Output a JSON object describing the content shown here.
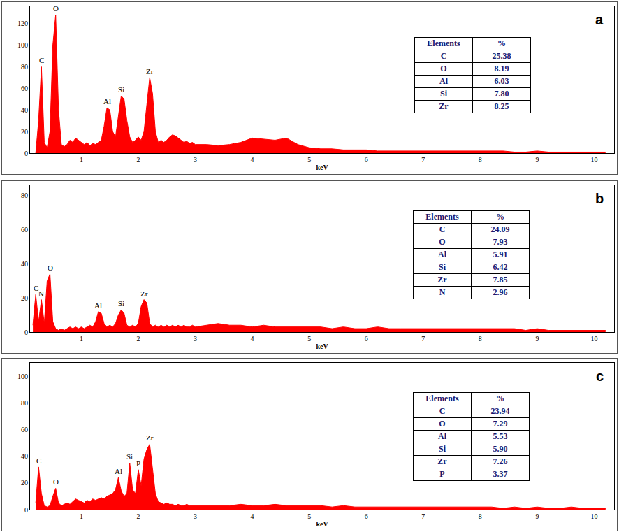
{
  "chart_data": [
    {
      "type": "area",
      "title": "a",
      "xlabel": "keV",
      "color": "#ff0000",
      "xlim": [
        0.1,
        10.35
      ],
      "xticks": [
        1,
        2,
        3,
        4,
        5,
        6,
        7,
        8,
        9,
        10
      ],
      "ylim": [
        0,
        136
      ],
      "yticks": [
        0,
        20,
        40,
        60,
        80,
        100,
        120
      ],
      "x": [
        0.2,
        0.25,
        0.3,
        0.35,
        0.4,
        0.45,
        0.5,
        0.55,
        0.6,
        0.65,
        0.7,
        0.75,
        0.8,
        0.85,
        0.9,
        0.95,
        1,
        1.05,
        1.1,
        1.15,
        1.2,
        1.25,
        1.3,
        1.35,
        1.4,
        1.45,
        1.5,
        1.55,
        1.6,
        1.65,
        1.7,
        1.75,
        1.8,
        1.85,
        1.9,
        1.95,
        2,
        2.05,
        2.1,
        2.15,
        2.2,
        2.25,
        2.3,
        2.35,
        2.4,
        2.45,
        2.5,
        2.55,
        2.6,
        2.65,
        2.7,
        2.75,
        2.8,
        2.85,
        2.9,
        2.95,
        3,
        3.2,
        3.4,
        3.6,
        3.8,
        4,
        4.2,
        4.4,
        4.6,
        4.8,
        5,
        5.2,
        5.4,
        5.6,
        5.8,
        6,
        6.2,
        6.4,
        6.6,
        6.8,
        7,
        7.2,
        7.4,
        7.6,
        7.8,
        8,
        8.2,
        8.4,
        8.6,
        8.8,
        9,
        9.2,
        9.4,
        9.6,
        9.8,
        10,
        10.2
      ],
      "values": [
        0,
        30,
        80,
        10,
        5,
        20,
        100,
        128,
        40,
        8,
        6,
        8,
        12,
        10,
        14,
        12,
        10,
        8,
        10,
        7,
        9,
        8,
        10,
        12,
        25,
        42,
        40,
        20,
        15,
        35,
        53,
        50,
        30,
        15,
        10,
        12,
        15,
        12,
        20,
        45,
        70,
        55,
        20,
        10,
        12,
        10,
        12,
        15,
        17,
        16,
        14,
        12,
        10,
        11,
        9,
        10,
        8,
        8,
        7,
        8,
        10,
        14,
        13,
        12,
        14,
        8,
        5,
        4,
        4,
        3,
        3,
        3,
        2,
        2,
        2,
        2,
        2,
        2,
        2,
        2,
        2,
        2,
        2,
        2,
        1,
        1,
        2,
        1,
        1,
        1,
        1,
        1,
        1
      ],
      "annotations": [
        {
          "text": "C",
          "x": 0.3,
          "y": 80
        },
        {
          "text": "O",
          "x": 0.55,
          "y": 128
        },
        {
          "text": "Al",
          "x": 1.45,
          "y": 42
        },
        {
          "text": "Si",
          "x": 1.7,
          "y": 53
        },
        {
          "text": "Zr",
          "x": 2.2,
          "y": 70
        }
      ],
      "table": {
        "header": [
          "Elements",
          "%"
        ],
        "rows": [
          [
            "C",
            "25.38"
          ],
          [
            "O",
            "8.19"
          ],
          [
            "Al",
            "6.03"
          ],
          [
            "Si",
            "7.80"
          ],
          [
            "Zr",
            "8.25"
          ]
        ]
      }
    },
    {
      "type": "area",
      "title": "b",
      "xlabel": "keV",
      "color": "#ff0000",
      "xlim": [
        0.1,
        10.35
      ],
      "xticks": [
        1,
        2,
        3,
        4,
        5,
        6,
        7,
        8,
        9,
        10
      ],
      "ylim": [
        0,
        86
      ],
      "yticks": [
        0,
        20,
        40,
        60,
        80
      ],
      "x": [
        0.15,
        0.2,
        0.25,
        0.3,
        0.35,
        0.4,
        0.45,
        0.5,
        0.55,
        0.6,
        0.65,
        0.7,
        0.75,
        0.8,
        0.85,
        0.9,
        0.95,
        1,
        1.05,
        1.1,
        1.15,
        1.2,
        1.25,
        1.3,
        1.35,
        1.4,
        1.45,
        1.5,
        1.55,
        1.6,
        1.65,
        1.7,
        1.75,
        1.8,
        1.85,
        1.9,
        1.95,
        2,
        2.05,
        2.1,
        2.15,
        2.2,
        2.25,
        2.3,
        2.35,
        2.4,
        2.45,
        2.5,
        2.55,
        2.6,
        2.65,
        2.7,
        2.75,
        2.8,
        2.85,
        2.9,
        2.95,
        3,
        3.2,
        3.4,
        3.6,
        3.8,
        4,
        4.2,
        4.4,
        4.6,
        4.8,
        5,
        5.2,
        5.4,
        5.6,
        5.8,
        6,
        6.2,
        6.4,
        6.6,
        6.8,
        7,
        7.2,
        7.4,
        7.6,
        7.8,
        8,
        8.2,
        8.4,
        8.6,
        8.8,
        9,
        9.2,
        9.4,
        9.6,
        9.8,
        10,
        10.2
      ],
      "values": [
        4,
        22,
        6,
        19,
        5,
        30,
        34,
        6,
        2,
        1,
        2,
        1,
        2,
        3,
        2,
        3,
        2,
        3,
        2,
        3,
        4,
        3,
        6,
        12,
        11,
        5,
        3,
        4,
        3,
        5,
        10,
        13,
        11,
        4,
        3,
        4,
        3,
        5,
        15,
        19,
        17,
        5,
        3,
        4,
        3,
        4,
        3,
        4,
        3,
        4,
        3,
        4,
        3,
        4,
        3,
        3,
        4,
        3,
        4,
        5,
        4,
        4,
        3,
        4,
        3,
        3,
        3,
        3,
        3,
        2,
        3,
        2,
        2,
        3,
        2,
        2,
        2,
        2,
        2,
        2,
        2,
        2,
        2,
        2,
        2,
        2,
        1,
        2,
        1,
        1,
        1,
        1,
        1,
        1
      ],
      "annotations": [
        {
          "text": "C",
          "x": 0.2,
          "y": 22
        },
        {
          "text": "N",
          "x": 0.3,
          "y": 19
        },
        {
          "text": "O",
          "x": 0.45,
          "y": 34
        },
        {
          "text": "Al",
          "x": 1.3,
          "y": 12
        },
        {
          "text": "Si",
          "x": 1.7,
          "y": 13
        },
        {
          "text": "Zr",
          "x": 2.1,
          "y": 19
        }
      ],
      "table": {
        "header": [
          "Elements",
          "%"
        ],
        "rows": [
          [
            "C",
            "24.09"
          ],
          [
            "O",
            "7.93"
          ],
          [
            "Al",
            "5.91"
          ],
          [
            "Si",
            "6.42"
          ],
          [
            "Zr",
            "7.85"
          ],
          [
            "N",
            "2.96"
          ]
        ]
      }
    },
    {
      "type": "area",
      "title": "c",
      "xlabel": "keV",
      "color": "#ff0000",
      "xlim": [
        0.1,
        10.35
      ],
      "xticks": [
        1,
        2,
        3,
        4,
        5,
        6,
        7,
        8,
        9,
        10
      ],
      "ylim": [
        0,
        110
      ],
      "yticks": [
        0,
        20,
        40,
        60,
        80,
        100
      ],
      "x": [
        0.2,
        0.25,
        0.3,
        0.35,
        0.4,
        0.45,
        0.5,
        0.55,
        0.6,
        0.65,
        0.7,
        0.75,
        0.8,
        0.85,
        0.9,
        0.95,
        1,
        1.05,
        1.1,
        1.15,
        1.2,
        1.25,
        1.3,
        1.35,
        1.4,
        1.45,
        1.5,
        1.55,
        1.6,
        1.65,
        1.7,
        1.75,
        1.8,
        1.85,
        1.9,
        1.95,
        2,
        2.05,
        2.1,
        2.15,
        2.2,
        2.25,
        2.3,
        2.35,
        2.4,
        2.45,
        2.5,
        2.55,
        2.6,
        2.65,
        2.7,
        2.75,
        2.8,
        2.85,
        2.9,
        2.95,
        3,
        3.2,
        3.4,
        3.6,
        3.8,
        4,
        4.2,
        4.4,
        4.6,
        4.8,
        5,
        5.2,
        5.4,
        5.6,
        5.8,
        6,
        6.2,
        6.4,
        6.6,
        6.8,
        7,
        7.2,
        7.4,
        7.6,
        7.8,
        8,
        8.2,
        8.4,
        8.6,
        8.8,
        9,
        9.2,
        9.4,
        9.6,
        9.8,
        10,
        10.2
      ],
      "values": [
        5,
        32,
        12,
        3,
        2,
        3,
        10,
        16,
        5,
        3,
        4,
        5,
        4,
        6,
        8,
        7,
        6,
        5,
        7,
        6,
        8,
        7,
        8,
        9,
        8,
        10,
        11,
        12,
        15,
        24,
        14,
        10,
        12,
        35,
        15,
        12,
        30,
        18,
        38,
        45,
        49,
        30,
        12,
        6,
        5,
        4,
        5,
        4,
        4,
        3,
        4,
        3,
        3,
        4,
        3,
        3,
        3,
        3,
        3,
        3,
        4,
        3,
        3,
        4,
        3,
        3,
        3,
        3,
        2,
        3,
        2,
        2,
        2,
        2,
        2,
        2,
        2,
        2,
        2,
        2,
        2,
        2,
        2,
        1,
        2,
        1,
        2,
        1,
        1,
        2,
        1,
        1,
        1
      ],
      "annotations": [
        {
          "text": "C",
          "x": 0.25,
          "y": 32
        },
        {
          "text": "O",
          "x": 0.55,
          "y": 16
        },
        {
          "text": "Al",
          "x": 1.65,
          "y": 24
        },
        {
          "text": "Si",
          "x": 1.85,
          "y": 35
        },
        {
          "text": "P",
          "x": 2.0,
          "y": 30
        },
        {
          "text": "Zr",
          "x": 2.2,
          "y": 49
        }
      ],
      "table": {
        "header": [
          "Elements",
          "%"
        ],
        "rows": [
          [
            "C",
            "23.94"
          ],
          [
            "O",
            "7.29"
          ],
          [
            "Al",
            "5.53"
          ],
          [
            "Si",
            "5.90"
          ],
          [
            "Zr",
            "7.26"
          ],
          [
            "P",
            "3.37"
          ]
        ]
      }
    }
  ]
}
